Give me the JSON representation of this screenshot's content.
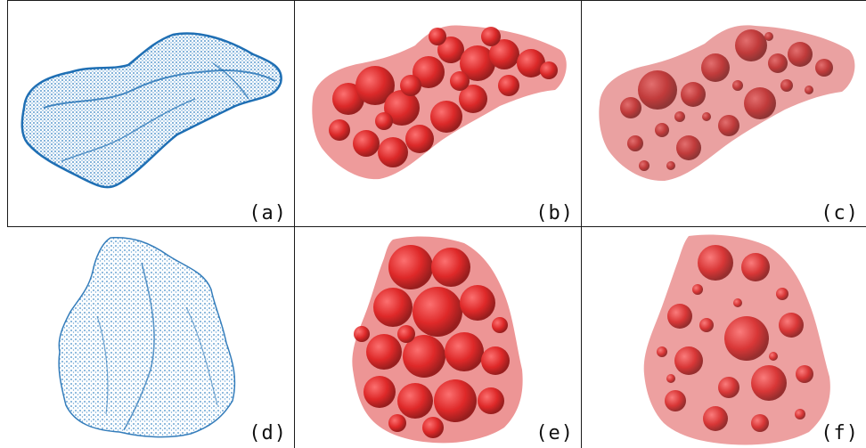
{
  "panels": [
    {
      "label": "(a)",
      "kind": "point-cloud",
      "shape": "elongated-rock",
      "color": "#2f7fc1"
    },
    {
      "label": "(b)",
      "kind": "sphere-packing",
      "shape": "elongated-rock",
      "color": "#e01818",
      "sphere_size": "small-dense"
    },
    {
      "label": "(c)",
      "kind": "sphere-packing",
      "shape": "elongated-rock",
      "color": "#e01818",
      "sphere_size": "mixed-sparse"
    },
    {
      "label": "(d)",
      "kind": "point-cloud",
      "shape": "round-rock",
      "color": "#2f7fc1"
    },
    {
      "label": "(e)",
      "kind": "sphere-packing",
      "shape": "round-rock",
      "color": "#e01818",
      "sphere_size": "large-dense"
    },
    {
      "label": "(f)",
      "kind": "sphere-packing",
      "shape": "round-rock",
      "color": "#e01818",
      "sphere_size": "mixed-sparse"
    }
  ]
}
